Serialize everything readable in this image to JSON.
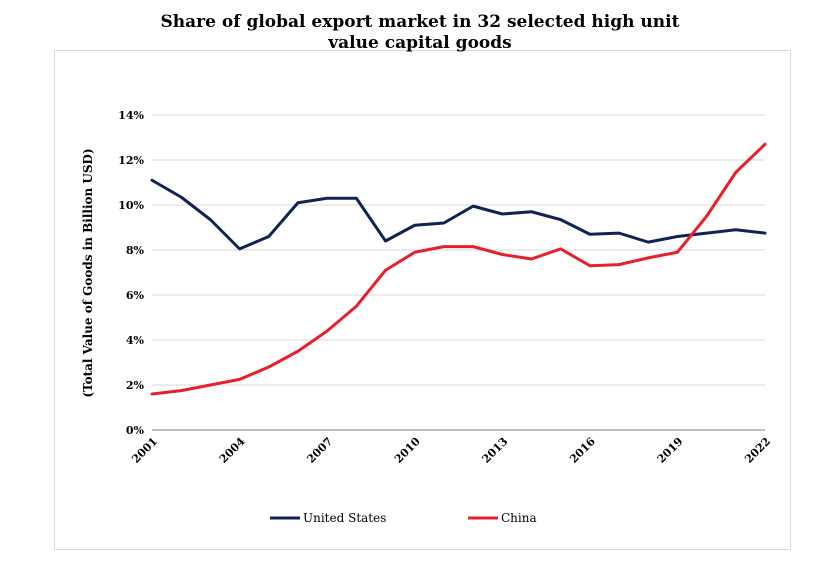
{
  "chart_data": {
    "type": "line",
    "title": "Share of global export market in 32 selected high unit value capital goods",
    "xlabel": "",
    "ylabel": "(Total Value of Goods in Billion USD)",
    "x": [
      2001,
      2002,
      2003,
      2004,
      2005,
      2006,
      2007,
      2008,
      2009,
      2010,
      2011,
      2012,
      2013,
      2014,
      2015,
      2016,
      2017,
      2018,
      2019,
      2020,
      2021,
      2022
    ],
    "x_tick_labels": [
      "2001",
      "2004",
      "2007",
      "2010",
      "2013",
      "2016",
      "2019",
      "2022"
    ],
    "y_tick_labels": [
      "0%",
      "2%",
      "4%",
      "6%",
      "8%",
      "10%",
      "12%",
      "14%"
    ],
    "ylim": [
      0,
      14
    ],
    "y_unit": "%",
    "grid": "horizontal",
    "legend_position": "bottom",
    "series": [
      {
        "name": "United States",
        "color": "#0f2454",
        "values": [
          11.1,
          10.35,
          9.35,
          8.05,
          8.6,
          10.1,
          10.3,
          10.3,
          8.4,
          9.1,
          9.2,
          9.95,
          9.6,
          9.7,
          9.35,
          8.7,
          8.75,
          8.35,
          8.6,
          8.75,
          8.9,
          8.75
        ]
      },
      {
        "name": "China",
        "color": "#e8202c",
        "values": [
          1.6,
          1.75,
          2.0,
          2.25,
          2.8,
          3.5,
          4.4,
          5.5,
          7.1,
          7.9,
          8.15,
          8.15,
          7.8,
          7.6,
          8.05,
          7.3,
          7.35,
          7.65,
          7.9,
          9.5,
          11.45,
          12.7
        ]
      }
    ]
  }
}
